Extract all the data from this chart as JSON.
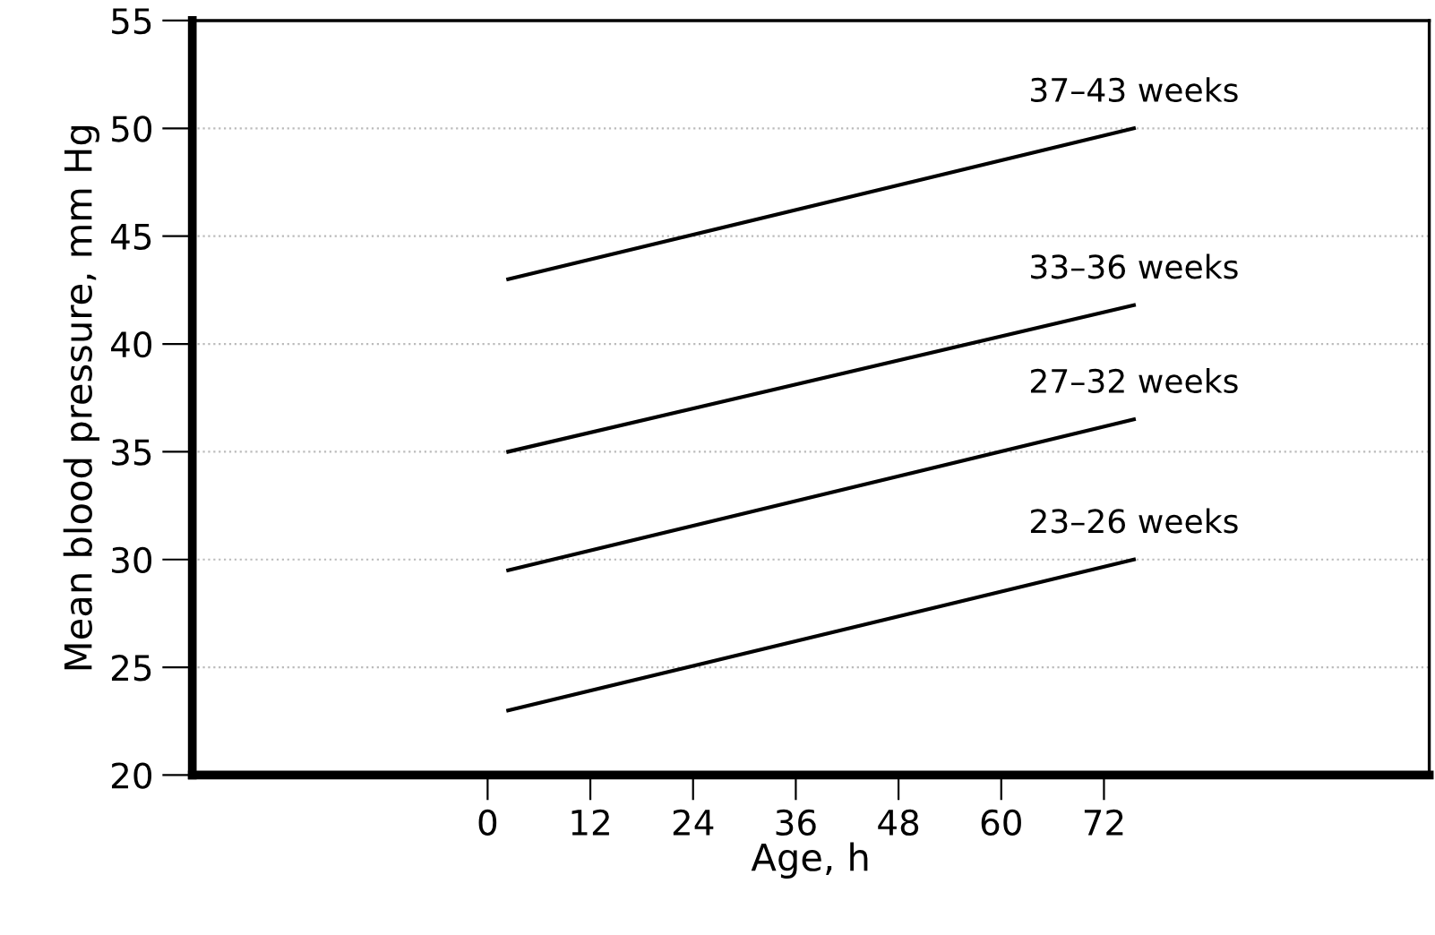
{
  "chart_data": {
    "type": "line",
    "xlabel": "Age, h",
    "ylabel": "Mean blood pressure, mm Hg",
    "xlim": [
      -34.5,
      110
    ],
    "xticks": [
      0,
      12,
      24,
      36,
      48,
      60,
      72
    ],
    "ylim": [
      20,
      55
    ],
    "yticks": [
      20,
      25,
      30,
      35,
      40,
      45,
      50,
      55
    ],
    "grid": "y",
    "legend": false,
    "marker": "none",
    "line_style": "solid",
    "x": [
      2.4,
      75.5
    ],
    "series": [
      {
        "name": "37–43 weeks",
        "color": "#000000",
        "values": [
          43.0,
          50.0
        ]
      },
      {
        "name": "33–36 weeks",
        "color": "#000000",
        "values": [
          35.0,
          41.8
        ]
      },
      {
        "name": "27–32 weeks",
        "color": "#000000",
        "values": [
          29.5,
          36.5
        ]
      },
      {
        "name": "23–26 weeks",
        "color": "#000000",
        "values": [
          23.0,
          30.0
        ]
      }
    ]
  }
}
